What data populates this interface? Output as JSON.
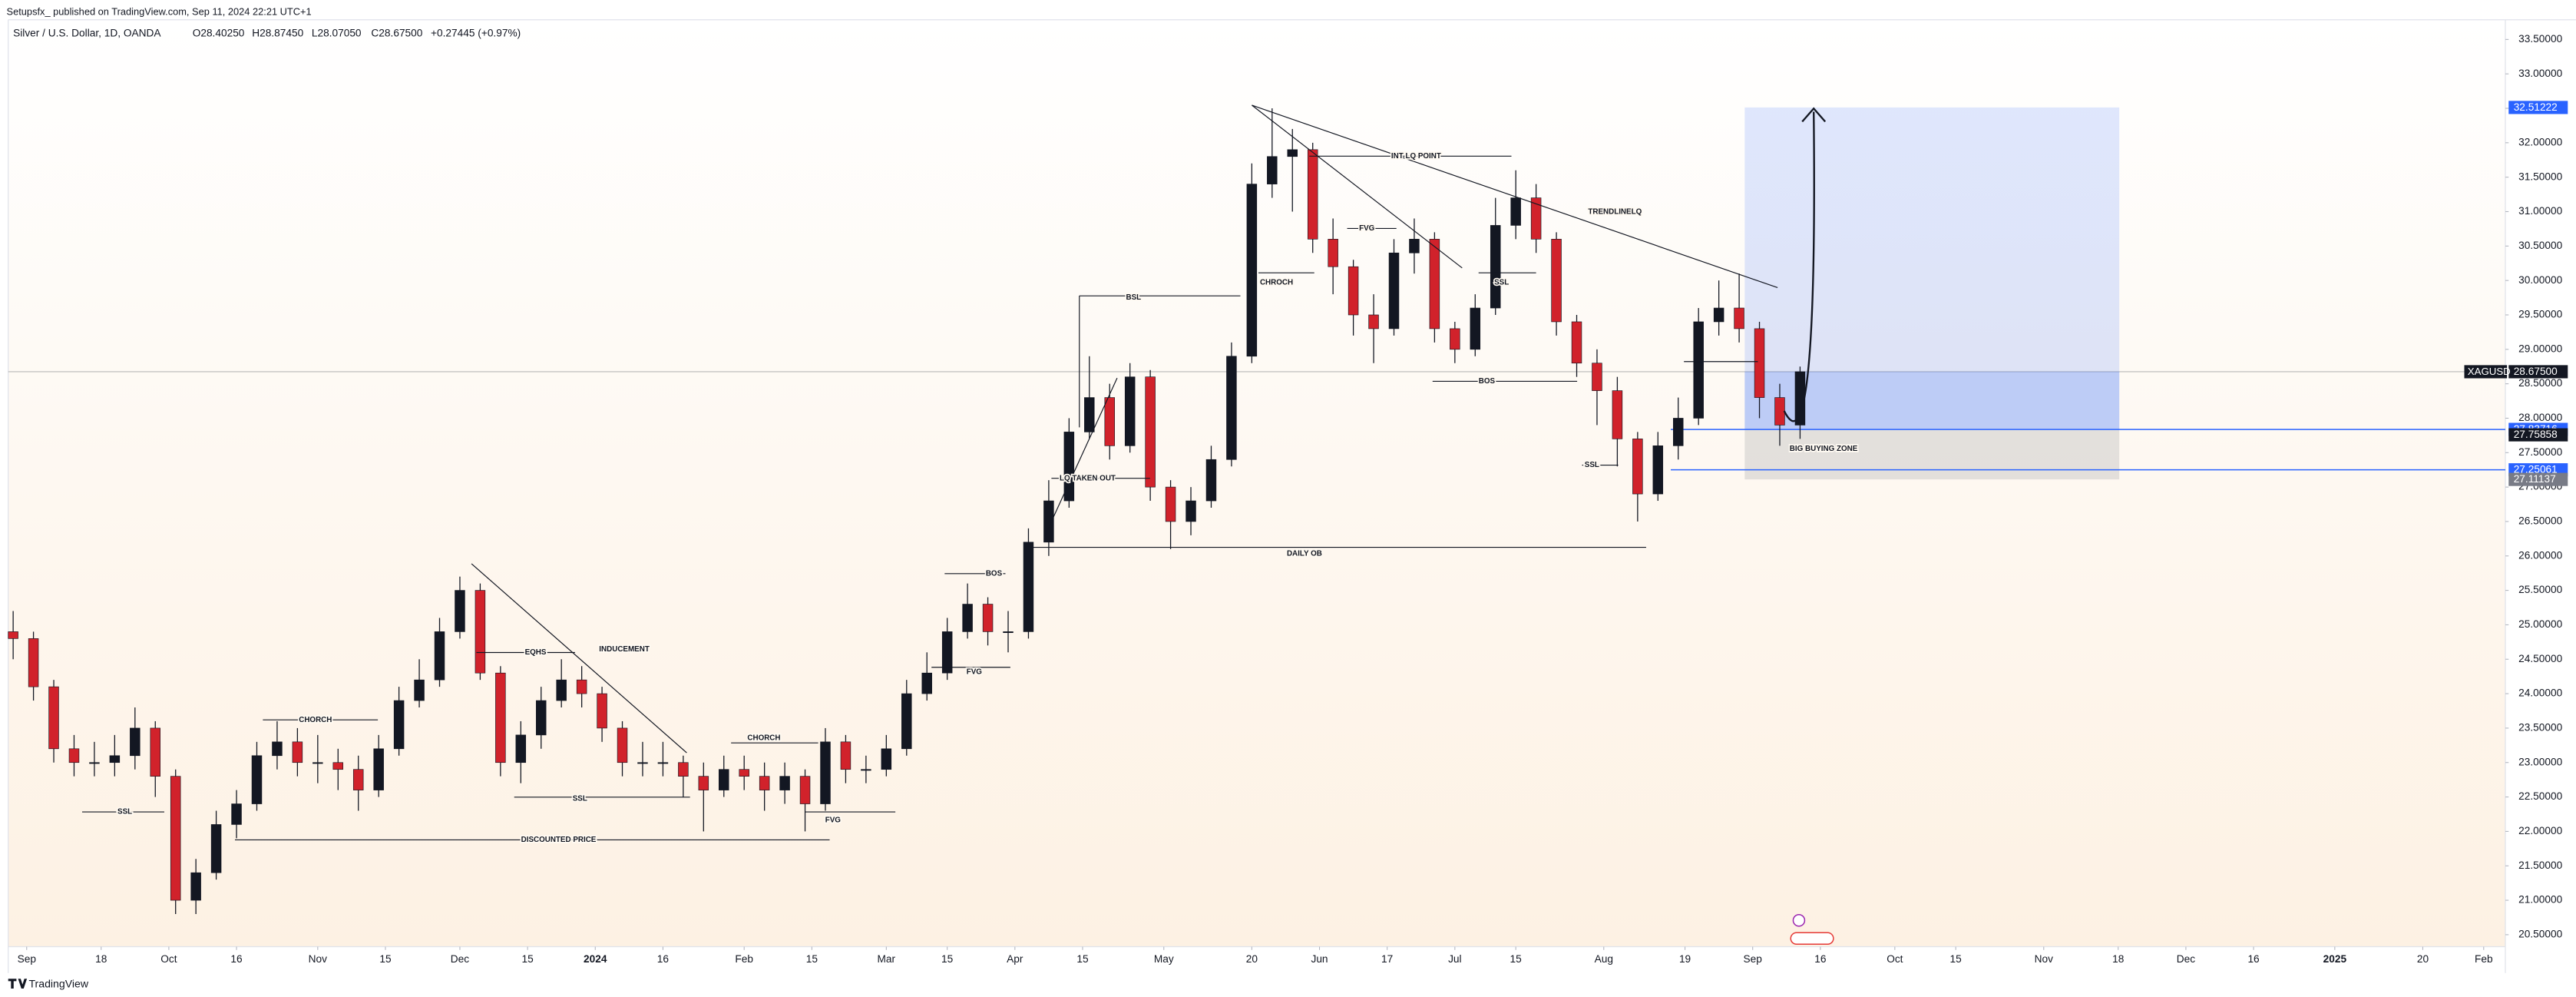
{
  "header": {
    "publisher": "Setupsfx_ published on TradingView.com, Sep 11, 2024 22:21 UTC+1",
    "title": "Silver / U.S. Dollar, 1D, OANDA",
    "ohlc": [
      "O28.40250",
      "H28.87450",
      "L28.07050",
      "C28.67500"
    ],
    "change": "+0.27445 (+0.97%)"
  },
  "footer": "TradingView",
  "chart_data": {
    "type": "candlestick",
    "x": [
      0,
      3,
      6,
      9,
      12,
      15,
      18,
      21,
      24,
      27,
      30,
      33,
      36,
      39,
      42,
      45,
      48,
      51,
      54,
      57,
      60,
      63,
      66,
      69,
      72,
      75,
      78,
      81,
      84,
      87,
      90,
      93,
      96,
      99,
      102,
      105,
      108,
      111,
      114,
      117,
      120,
      123,
      126,
      129,
      132,
      135,
      138,
      141,
      144,
      147,
      150,
      153,
      156,
      159,
      162,
      165,
      168,
      171,
      174,
      177,
      180,
      183,
      186,
      189,
      192,
      195,
      198,
      201,
      204,
      207,
      210,
      213,
      216,
      219,
      222,
      225,
      228,
      231,
      234,
      237,
      240,
      243,
      246,
      249,
      252,
      255,
      258,
      261,
      264
    ],
    "open": [
      24.9,
      24.8,
      24.1,
      23.2,
      23.0,
      23.0,
      23.1,
      23.5,
      22.8,
      21.0,
      21.4,
      22.1,
      22.4,
      23.1,
      23.3,
      23.0,
      23.0,
      22.9,
      22.6,
      23.2,
      23.9,
      24.2,
      24.9,
      25.5,
      24.3,
      23.0,
      23.4,
      23.9,
      24.2,
      24.0,
      23.5,
      23.0,
      23.0,
      23.0,
      22.8,
      22.6,
      22.9,
      22.8,
      22.6,
      22.8,
      22.4,
      23.3,
      22.9,
      22.9,
      23.2,
      24.0,
      24.3,
      24.9,
      25.3,
      24.9,
      24.9,
      26.2,
      26.8,
      27.8,
      28.3,
      27.6,
      28.6,
      27.0,
      26.5,
      26.8,
      27.4,
      28.9,
      31.4,
      31.8,
      31.9,
      30.6,
      30.2,
      29.5,
      29.3,
      30.4,
      30.6,
      29.3,
      29.0,
      29.6,
      30.8,
      31.2,
      30.6,
      29.4,
      28.8,
      28.4,
      27.7,
      26.9,
      27.6,
      28.0,
      29.4,
      29.6,
      29.3,
      28.3,
      27.9
    ],
    "high": [
      25.2,
      24.9,
      24.2,
      23.4,
      23.3,
      23.4,
      23.8,
      23.6,
      22.9,
      21.6,
      22.3,
      22.6,
      23.3,
      23.6,
      23.5,
      23.4,
      23.2,
      23.1,
      23.4,
      24.1,
      24.5,
      25.1,
      25.7,
      25.6,
      24.4,
      23.6,
      24.1,
      24.5,
      24.4,
      24.1,
      23.6,
      23.3,
      23.3,
      23.1,
      23.0,
      23.1,
      23.1,
      23.0,
      23.0,
      22.9,
      23.5,
      23.4,
      23.1,
      23.4,
      24.2,
      24.6,
      25.1,
      25.6,
      25.4,
      25.2,
      26.4,
      27.1,
      28.0,
      28.9,
      28.5,
      28.8,
      28.7,
      27.1,
      27.0,
      27.6,
      29.1,
      31.7,
      32.5,
      32.2,
      32.0,
      30.9,
      30.3,
      29.8,
      30.6,
      30.9,
      30.7,
      29.4,
      29.8,
      31.2,
      31.6,
      31.4,
      30.7,
      29.5,
      29.0,
      28.6,
      27.8,
      27.8,
      28.3,
      29.6,
      30.0,
      30.1,
      29.4,
      28.5,
      28.75
    ],
    "low": [
      24.5,
      23.9,
      23.0,
      22.8,
      22.8,
      22.8,
      22.9,
      22.5,
      20.8,
      20.8,
      21.3,
      21.9,
      22.3,
      22.9,
      22.8,
      22.7,
      22.6,
      22.3,
      22.5,
      23.1,
      23.8,
      24.1,
      24.8,
      24.2,
      22.8,
      22.7,
      23.2,
      23.8,
      23.8,
      23.3,
      22.8,
      22.8,
      22.8,
      22.5,
      22.0,
      22.5,
      22.6,
      22.3,
      22.4,
      22.0,
      22.3,
      22.7,
      22.7,
      22.8,
      23.1,
      23.9,
      24.2,
      24.8,
      24.7,
      24.6,
      24.8,
      26.0,
      26.7,
      27.7,
      27.4,
      27.5,
      26.8,
      26.1,
      26.3,
      26.7,
      27.3,
      28.8,
      31.2,
      31.0,
      30.4,
      29.8,
      29.2,
      28.8,
      29.2,
      30.1,
      29.1,
      28.8,
      28.9,
      29.5,
      30.6,
      30.4,
      29.2,
      28.6,
      27.9,
      27.3,
      26.5,
      26.8,
      27.4,
      27.9,
      29.2,
      29.1,
      28.0,
      27.6,
      27.7
    ],
    "close": [
      24.8,
      24.1,
      23.2,
      23.0,
      23.0,
      23.1,
      23.5,
      22.8,
      21.0,
      21.4,
      22.1,
      22.4,
      23.1,
      23.3,
      23.0,
      23.0,
      22.9,
      22.6,
      23.2,
      23.9,
      24.2,
      24.9,
      25.5,
      24.3,
      23.0,
      23.4,
      23.9,
      24.2,
      24.0,
      23.5,
      23.0,
      23.0,
      23.0,
      22.8,
      22.6,
      22.9,
      22.8,
      22.6,
      22.8,
      22.4,
      23.3,
      22.9,
      22.9,
      23.2,
      24.0,
      24.3,
      24.9,
      25.3,
      24.9,
      24.9,
      26.2,
      26.8,
      27.8,
      28.3,
      27.6,
      28.6,
      27.0,
      26.5,
      26.8,
      27.4,
      28.9,
      31.4,
      31.8,
      31.9,
      30.6,
      30.2,
      29.5,
      29.3,
      30.4,
      30.6,
      29.3,
      29.0,
      29.6,
      30.8,
      31.2,
      30.6,
      29.4,
      28.8,
      28.4,
      27.7,
      26.9,
      27.6,
      28.0,
      29.4,
      29.6,
      29.3,
      28.3,
      27.9,
      28.675
    ],
    "up_color": "#131722",
    "down_color": "#d1222b",
    "xlim": [
      -0.73,
      368.2
    ],
    "xticks": [
      {
        "value": 2,
        "label": "Sep"
      },
      {
        "value": 13,
        "label": "18"
      },
      {
        "value": 23,
        "label": "Oct"
      },
      {
        "value": 33,
        "label": "16"
      },
      {
        "value": 45,
        "label": "Nov"
      },
      {
        "value": 55,
        "label": "15"
      },
      {
        "value": 66,
        "label": "Dec"
      },
      {
        "value": 76,
        "label": "15"
      },
      {
        "value": 86,
        "label": "2024"
      },
      {
        "value": 96,
        "label": "16"
      },
      {
        "value": 108,
        "label": "Feb"
      },
      {
        "value": 118,
        "label": "15"
      },
      {
        "value": 129,
        "label": "Mar"
      },
      {
        "value": 138,
        "label": "15"
      },
      {
        "value": 148,
        "label": "Apr"
      },
      {
        "value": 158,
        "label": "15"
      },
      {
        "value": 170,
        "label": "May"
      },
      {
        "value": 183,
        "label": "20"
      },
      {
        "value": 193,
        "label": "Jun"
      },
      {
        "value": 203,
        "label": "17"
      },
      {
        "value": 213,
        "label": "Jul"
      },
      {
        "value": 222,
        "label": "15"
      },
      {
        "value": 235,
        "label": "Aug"
      },
      {
        "value": 247,
        "label": "19"
      },
      {
        "value": 257,
        "label": "Sep"
      },
      {
        "value": 267,
        "label": "16"
      },
      {
        "value": 278,
        "label": "Oct"
      },
      {
        "value": 287,
        "label": "15"
      },
      {
        "value": 300,
        "label": "Nov"
      },
      {
        "value": 311,
        "label": "18"
      },
      {
        "value": 321,
        "label": "Dec"
      },
      {
        "value": 331,
        "label": "16"
      },
      {
        "value": 343,
        "label": "2025"
      },
      {
        "value": 356,
        "label": "20"
      },
      {
        "value": 365,
        "label": "Feb"
      }
    ],
    "ylim": [
      20.326,
      33.786
    ],
    "yticks": [
      {
        "value": 20.5,
        "label": "20.50000"
      },
      {
        "value": 21,
        "label": "21.00000"
      },
      {
        "value": 21.5,
        "label": "21.50000"
      },
      {
        "value": 22,
        "label": "22.00000"
      },
      {
        "value": 22.5,
        "label": "22.50000"
      },
      {
        "value": 23,
        "label": "23.00000"
      },
      {
        "value": 23.5,
        "label": "23.50000"
      },
      {
        "value": 24,
        "label": "24.00000"
      },
      {
        "value": 24.5,
        "label": "24.50000"
      },
      {
        "value": 25,
        "label": "25.00000"
      },
      {
        "value": 25.5,
        "label": "25.50000"
      },
      {
        "value": 26,
        "label": "26.00000"
      },
      {
        "value": 26.5,
        "label": "26.50000"
      },
      {
        "value": 27,
        "label": "27.00000"
      },
      {
        "value": 27.5,
        "label": "27.50000"
      },
      {
        "value": 28,
        "label": "28.00000"
      },
      {
        "value": 28.5,
        "label": "28.50000"
      },
      {
        "value": 29,
        "label": "29.00000"
      },
      {
        "value": 29.5,
        "label": "29.50000"
      },
      {
        "value": 30,
        "label": "30.00000"
      },
      {
        "value": 30.5,
        "label": "30.50000"
      },
      {
        "value": 31,
        "label": "31.00000"
      },
      {
        "value": 31.5,
        "label": "31.50000"
      },
      {
        "value": 32,
        "label": "32.00000"
      },
      {
        "value": 32.5,
        "label": "32.50000"
      },
      {
        "value": 33,
        "label": "33.00000"
      },
      {
        "value": 33.5,
        "label": "33.50000"
      }
    ],
    "last": {
      "symbol": "XAGUSD",
      "price": {
        "value": 28.675,
        "label": "28.67500"
      }
    },
    "price_tags": [
      {
        "price": 32.51222,
        "color": "#2962ff"
      },
      {
        "price": 27.83716,
        "color": "#2962ff",
        "line": true
      },
      {
        "price": 27.75858,
        "color": "#131722"
      },
      {
        "price": 27.25061,
        "color": "#2962ff",
        "line": true
      },
      {
        "price": 27.11137,
        "color": "#787b86"
      }
    ],
    "annotations": [
      "SSL",
      "CHORCH",
      "EQHS",
      "INDUCEMENT",
      "SSL",
      "DISCOUNTED PRICE",
      "CHORCH",
      "FVG",
      "BOS",
      "FVG",
      "LQ TAKEN OUT",
      "BSL",
      "DAILY OB",
      "CHROCH",
      "INT LQ POINT",
      "FVG",
      "SSL",
      "TRENDLINELQ",
      "BOS",
      "SSL",
      "BIG BUYING ZONE"
    ]
  }
}
